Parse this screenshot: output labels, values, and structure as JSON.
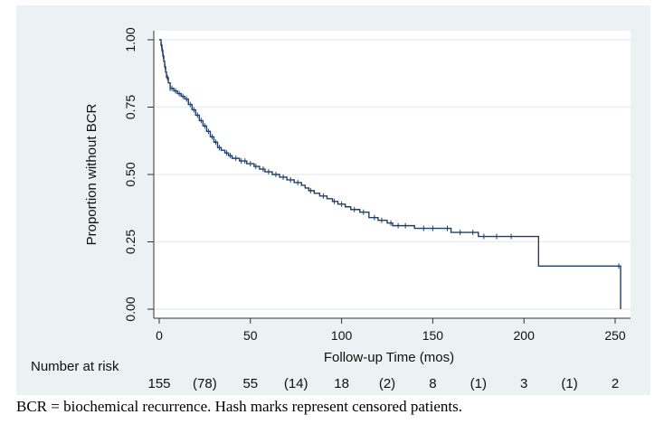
{
  "chart_data": {
    "type": "line",
    "subtype": "kaplan-meier",
    "xlabel": "Follow-up Time (mos)",
    "ylabel": "Proportion without BCR",
    "xlim": [
      0,
      255
    ],
    "ylim": [
      0,
      1
    ],
    "x_ticks": [
      "0",
      "50",
      "100",
      "150",
      "200",
      "250"
    ],
    "y_ticks": [
      "0.00",
      "0.25",
      "0.50",
      "0.75",
      "1.00"
    ],
    "grid": true,
    "line_color": "#1f3f66",
    "series": [
      {
        "steps": [
          [
            0,
            1.0
          ],
          [
            1,
            0.98
          ],
          [
            1.5,
            0.96
          ],
          [
            2,
            0.94
          ],
          [
            2.5,
            0.92
          ],
          [
            3,
            0.9
          ],
          [
            3.5,
            0.88
          ],
          [
            4,
            0.86
          ],
          [
            5,
            0.84
          ],
          [
            6,
            0.82
          ],
          [
            8,
            0.81
          ],
          [
            10,
            0.8
          ],
          [
            12,
            0.79
          ],
          [
            14,
            0.78
          ],
          [
            16,
            0.76
          ],
          [
            18,
            0.74
          ],
          [
            20,
            0.72
          ],
          [
            22,
            0.7
          ],
          [
            24,
            0.68
          ],
          [
            26,
            0.66
          ],
          [
            28,
            0.64
          ],
          [
            30,
            0.62
          ],
          [
            32,
            0.6
          ],
          [
            34,
            0.59
          ],
          [
            36,
            0.58
          ],
          [
            38,
            0.57
          ],
          [
            40,
            0.56
          ],
          [
            44,
            0.55
          ],
          [
            48,
            0.54
          ],
          [
            52,
            0.53
          ],
          [
            55,
            0.52
          ],
          [
            58,
            0.51
          ],
          [
            62,
            0.5
          ],
          [
            66,
            0.49
          ],
          [
            70,
            0.48
          ],
          [
            74,
            0.47
          ],
          [
            78,
            0.46
          ],
          [
            80,
            0.45
          ],
          [
            82,
            0.44
          ],
          [
            85,
            0.43
          ],
          [
            88,
            0.42
          ],
          [
            92,
            0.41
          ],
          [
            95,
            0.4
          ],
          [
            98,
            0.39
          ],
          [
            102,
            0.38
          ],
          [
            105,
            0.37
          ],
          [
            110,
            0.36
          ],
          [
            115,
            0.34
          ],
          [
            120,
            0.33
          ],
          [
            125,
            0.32
          ],
          [
            128,
            0.31
          ],
          [
            140,
            0.3
          ],
          [
            160,
            0.285
          ],
          [
            175,
            0.27
          ],
          [
            208,
            0.16
          ],
          [
            252,
            0.16
          ],
          [
            253,
            0.0
          ]
        ],
        "censor": [
          1.2,
          1.8,
          2.2,
          3.2,
          4.5,
          6,
          7,
          9,
          11,
          13,
          15,
          17,
          19,
          21,
          23,
          25,
          27,
          29,
          31,
          33,
          37,
          39,
          42,
          45,
          47,
          50,
          53,
          57,
          60,
          64,
          68,
          72,
          76,
          83,
          90,
          96,
          100,
          107,
          112,
          118,
          122,
          127,
          131,
          135,
          145,
          150,
          158,
          165,
          172,
          178,
          185,
          193,
          252
        ]
      }
    ]
  },
  "risk_table": {
    "label": "Number at risk",
    "values": [
      {
        "x": 0,
        "text": "155"
      },
      {
        "x": 25,
        "text": "(78)"
      },
      {
        "x": 50,
        "text": "55"
      },
      {
        "x": 75,
        "text": "(14)"
      },
      {
        "x": 100,
        "text": "18"
      },
      {
        "x": 125,
        "text": "(2)"
      },
      {
        "x": 150,
        "text": "8"
      },
      {
        "x": 175,
        "text": "(1)"
      },
      {
        "x": 200,
        "text": "3"
      },
      {
        "x": 225,
        "text": "(1)"
      },
      {
        "x": 250,
        "text": "2"
      }
    ]
  },
  "caption": "BCR = biochemical recurrence. Hash marks represent censored patients."
}
